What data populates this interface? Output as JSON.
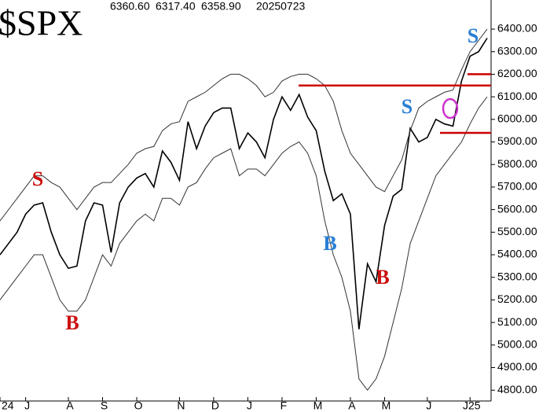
{
  "chart_data": {
    "type": "line",
    "title": "$SPX",
    "header": [
      "6360.60",
      "6317.40",
      "6358.90",
      "20250723"
    ],
    "categories": [
      "24",
      null,
      null,
      "J",
      null,
      null,
      null,
      null,
      "A",
      null,
      null,
      null,
      "S",
      null,
      null,
      null,
      "O",
      null,
      null,
      null,
      null,
      "N",
      null,
      null,
      null,
      "D",
      null,
      null,
      null,
      "J",
      null,
      null,
      null,
      "F",
      null,
      null,
      null,
      "M",
      null,
      null,
      null,
      "A",
      null,
      null,
      null,
      "M",
      null,
      null,
      null,
      null,
      "J",
      null,
      null,
      null,
      null,
      "J25",
      null,
      null
    ],
    "series": [
      {
        "color": "#000000",
        "values": [
          5400,
          5450,
          5500,
          5580,
          5620,
          5630,
          5500,
          5400,
          5340,
          5350,
          5550,
          5630,
          5620,
          5410,
          5630,
          5700,
          5740,
          5760,
          5700,
          5860,
          5810,
          5730,
          5990,
          5870,
          5970,
          6030,
          6050,
          6050,
          5870,
          5940,
          5900,
          5830,
          6000,
          6100,
          6040,
          6110,
          6010,
          5950,
          5770,
          5640,
          5670,
          5580,
          5070,
          5360,
          5280,
          5530,
          5660,
          5690,
          5960,
          5900,
          5920,
          6000,
          5980,
          5970,
          6170,
          6280,
          6300,
          6360
        ]
      },
      {
        "color": "#333333",
        "values": [
          5550,
          5600,
          5650,
          5700,
          5750,
          5750,
          5720,
          5700,
          5650,
          5600,
          5650,
          5700,
          5720,
          5720,
          5760,
          5800,
          5850,
          5870,
          5880,
          5950,
          5980,
          5990,
          6080,
          6100,
          6120,
          6150,
          6180,
          6200,
          6200,
          6180,
          6150,
          6100,
          6120,
          6170,
          6190,
          6200,
          6200,
          6180,
          6150,
          6080,
          5950,
          5850,
          5800,
          5750,
          5700,
          5680,
          5750,
          5820,
          5950,
          6050,
          6080,
          6100,
          6120,
          6130,
          6220,
          6300,
          6350,
          6400
        ]
      },
      {
        "color": "#333333",
        "values": [
          5200,
          5250,
          5300,
          5350,
          5400,
          5400,
          5300,
          5200,
          5150,
          5150,
          5200,
          5300,
          5400,
          5350,
          5450,
          5500,
          5550,
          5580,
          5550,
          5650,
          5650,
          5620,
          5700,
          5720,
          5780,
          5830,
          5850,
          5870,
          5750,
          5780,
          5780,
          5750,
          5800,
          5850,
          5880,
          5900,
          5850,
          5750,
          5550,
          5400,
          5300,
          5150,
          4850,
          4800,
          4850,
          4950,
          5100,
          5250,
          5450,
          5550,
          5650,
          5750,
          5800,
          5850,
          5900,
          5980,
          6050,
          6100
        ]
      }
    ],
    "ylim": [
      4752,
      6529
    ],
    "yticks": [
      {
        "value": 6400,
        "label": "6400.00"
      },
      {
        "value": 6300,
        "label": "6300.00"
      },
      {
        "value": 6200,
        "label": "6200.00"
      },
      {
        "value": 6100,
        "label": "6100.00"
      },
      {
        "value": 6000,
        "label": "6000.00"
      },
      {
        "value": 5900,
        "label": "5900.00"
      },
      {
        "value": 5800,
        "label": "5800.00"
      },
      {
        "value": 5700,
        "label": "5700.00"
      },
      {
        "value": 5600,
        "label": "5600.00"
      },
      {
        "value": 5500,
        "label": "5500.00"
      },
      {
        "value": 5400,
        "label": "5400.00"
      },
      {
        "value": 5300,
        "label": "5300.00"
      },
      {
        "value": 5200,
        "label": "5200.00"
      },
      {
        "value": 5100,
        "label": "5100.00"
      },
      {
        "value": 5000,
        "label": "5000.00"
      },
      {
        "value": 4900,
        "label": "4900.00"
      },
      {
        "value": 4800,
        "label": "4800.00"
      }
    ],
    "hlines": [
      {
        "value": 6150,
        "color": "#cc0000"
      },
      {
        "value": 6200,
        "color": "#cc0000"
      },
      {
        "value": 5940,
        "color": "#cc0000"
      }
    ],
    "annotations": [
      {
        "text": "S",
        "color": "#cc1111"
      },
      {
        "text": "B",
        "color": "#cc1111"
      },
      {
        "text": "B",
        "color": "#2a7fd4"
      },
      {
        "text": "B",
        "color": "#cc1111"
      },
      {
        "text": "S",
        "color": "#2a7fd4"
      },
      {
        "text": "S",
        "color": "#2a7fd4"
      }
    ]
  }
}
